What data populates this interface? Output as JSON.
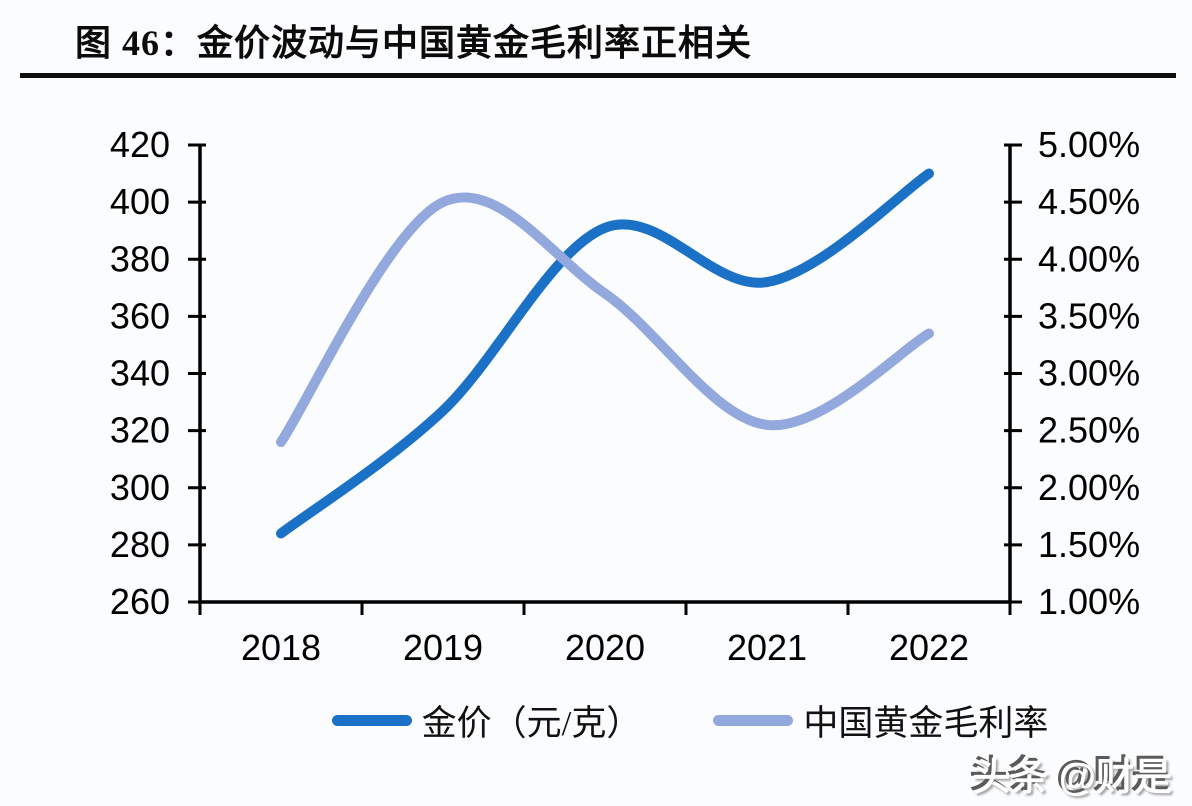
{
  "figure": {
    "title": "图 46：金价波动与中国黄金毛利率正相关",
    "watermark": "头条 @财是"
  },
  "colors": {
    "gold_price_line": "#1b71c6",
    "gross_margin_line": "#93a9de",
    "axis": "#000000",
    "background": "#fbfcfe"
  },
  "legend": {
    "items": [
      {
        "label": "金价（元/克）",
        "color": "#1b71c6"
      },
      {
        "label": "中国黄金毛利率",
        "color": "#93a9de"
      }
    ]
  },
  "chart_data": {
    "type": "line",
    "smoothed": true,
    "grid": false,
    "legend_position": "bottom",
    "categories": [
      "2018",
      "2019",
      "2020",
      "2021",
      "2022"
    ],
    "series": [
      {
        "name": "金价（元/克）",
        "axis": "left",
        "color": "#1b71c6",
        "values": [
          284,
          327,
          391,
          372,
          410
        ]
      },
      {
        "name": "中国黄金毛利率",
        "axis": "right",
        "color": "#93a9de",
        "values": [
          2.4,
          4.5,
          3.7,
          2.55,
          3.35
        ]
      }
    ],
    "left_axis": {
      "min": 260,
      "max": 420,
      "step": 20,
      "ticks": [
        "420",
        "400",
        "380",
        "360",
        "340",
        "320",
        "300",
        "280",
        "260"
      ]
    },
    "right_axis": {
      "min": 1.0,
      "max": 5.0,
      "step": 0.5,
      "ticks": [
        "5.00%",
        "4.50%",
        "4.00%",
        "3.50%",
        "3.00%",
        "2.50%",
        "2.00%",
        "1.50%",
        "1.00%"
      ]
    },
    "x_axis": {
      "labels": [
        "2018",
        "2019",
        "2020",
        "2021",
        "2022"
      ]
    }
  }
}
